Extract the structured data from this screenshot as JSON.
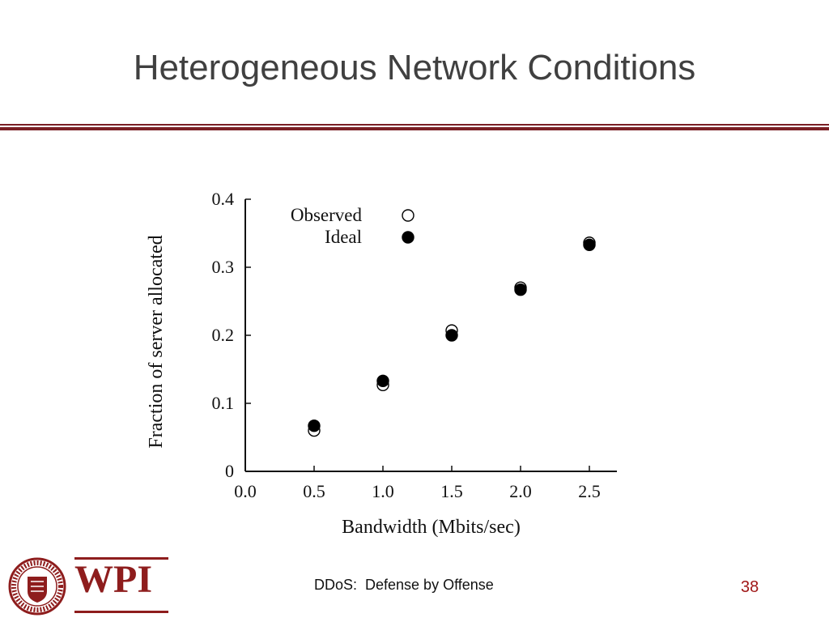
{
  "slide": {
    "title": "Heterogeneous Network Conditions",
    "footer": "DDoS:  Defense by Offense",
    "page_number": "38"
  },
  "logo": {
    "text": "WPI",
    "seal_text": "WORCESTER POLYTECHNIC INSTITUTE 1865"
  },
  "theme": {
    "accent": "#7a1f24",
    "page_number_color": "#a01818",
    "title_color": "#404040"
  },
  "chart_data": {
    "type": "scatter",
    "title": "",
    "xlabel": "Bandwidth (Mbits/sec)",
    "ylabel": "Fraction of server allocated",
    "xlim": [
      0.0,
      2.7
    ],
    "ylim": [
      0,
      0.4
    ],
    "x_ticks": [
      "0.0",
      "0.5",
      "1.0",
      "1.5",
      "2.0",
      "2.5"
    ],
    "y_ticks": [
      "0",
      "0.1",
      "0.2",
      "0.3",
      "0.4"
    ],
    "legend_position": "top-left",
    "grid": false,
    "series": [
      {
        "name": "Observed",
        "marker": "open-circle",
        "points": [
          {
            "x": 0.5,
            "y": 0.06
          },
          {
            "x": 1.0,
            "y": 0.127
          },
          {
            "x": 1.5,
            "y": 0.207
          },
          {
            "x": 2.0,
            "y": 0.27
          },
          {
            "x": 2.5,
            "y": 0.336
          }
        ]
      },
      {
        "name": "Ideal",
        "marker": "filled-circle",
        "points": [
          {
            "x": 0.5,
            "y": 0.067
          },
          {
            "x": 1.0,
            "y": 0.133
          },
          {
            "x": 1.5,
            "y": 0.2
          },
          {
            "x": 2.0,
            "y": 0.267
          },
          {
            "x": 2.5,
            "y": 0.333
          }
        ]
      }
    ]
  }
}
